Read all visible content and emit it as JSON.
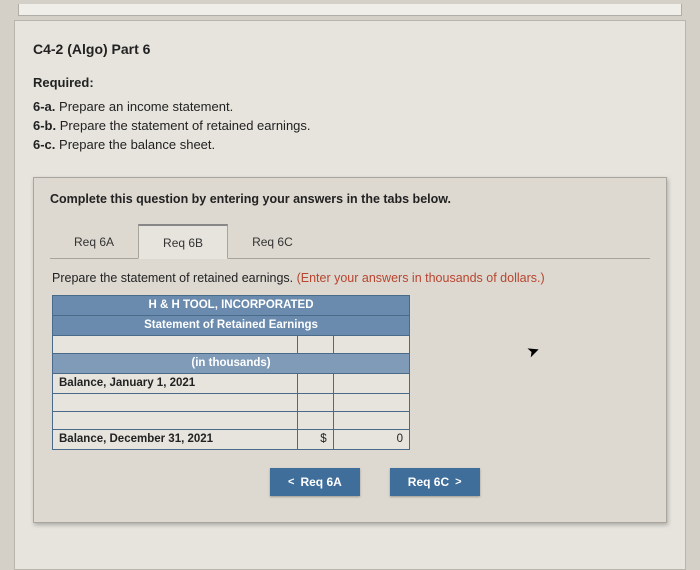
{
  "header": {
    "title": "C4-2 (Algo) Part 6"
  },
  "required": {
    "label": "Required:",
    "items": [
      {
        "key": "6-a.",
        "text": "Prepare an income statement."
      },
      {
        "key": "6-b.",
        "text": "Prepare the statement of retained earnings."
      },
      {
        "key": "6-c.",
        "text": "Prepare the balance sheet."
      }
    ]
  },
  "card": {
    "instruction": "Complete this question by entering your answers in the tabs below.",
    "tabs": {
      "items": [
        {
          "label": "Req 6A",
          "active": false
        },
        {
          "label": "Req 6B",
          "active": true
        },
        {
          "label": "Req 6C",
          "active": false
        }
      ]
    },
    "sub_instruction": {
      "text": "Prepare the statement of retained earnings. ",
      "hint": "(Enter your answers in thousands of dollars.)"
    },
    "worksheet": {
      "company": "H & H TOOL, INCORPORATED",
      "statement": "Statement of Retained Earnings",
      "units_header": "(in thousands)",
      "rows": {
        "r1_label": "Balance, January 1, 2021",
        "r4_label": "Balance, December 31, 2021",
        "r4_symbol": "$",
        "r4_value": "0"
      }
    },
    "nav": {
      "prev": {
        "chev": "<",
        "label": "Req 6A"
      },
      "next": {
        "label": "Req 6C",
        "chev": ">"
      }
    }
  }
}
